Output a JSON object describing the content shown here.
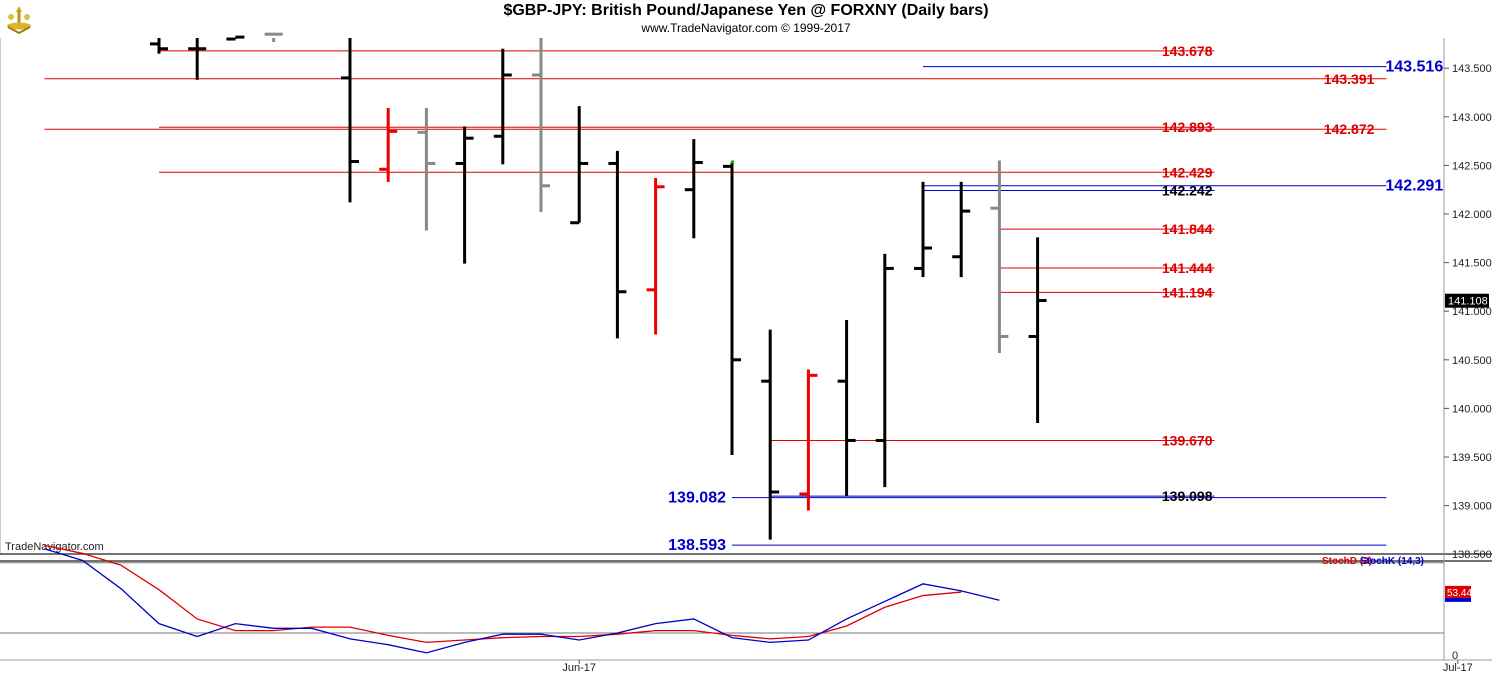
{
  "header": {
    "title": "$GBP-JPY:  British Pound/Japanese Yen @ FORXNY  (Daily bars)",
    "subtitle": "www.TradeNavigator.com © 1999-2017"
  },
  "watermark": "TradeNavigator.com",
  "colors": {
    "up": "#000000",
    "down": "#000000",
    "gray": "#888888",
    "red": "#ee0000",
    "level_red": "#dd0000",
    "level_blue": "#0000cc",
    "stochD": "#dd0000",
    "stochK": "#0000cc"
  },
  "chart_data": [
    {
      "type": "ohlc",
      "title": "$GBP-JPY:  British Pound/Japanese Yen @ FORXNY  (Daily bars)",
      "ylim": [
        138.35,
        143.9
      ],
      "y_ticks": [
        "138.500",
        "139.000",
        "139.500",
        "140.000",
        "140.500",
        "141.000",
        "141.500",
        "142.000",
        "142.500",
        "143.000",
        "143.500"
      ],
      "x_labels": [
        {
          "label": "Jun-17",
          "index": 11
        },
        {
          "label": "Jul-17",
          "index": 34
        }
      ],
      "n_slots": 36,
      "last_price": "141.108",
      "bars": [
        {
          "i": 0,
          "o": 143.75,
          "h": 143.92,
          "l": 143.65,
          "c": 143.7,
          "color": "black"
        },
        {
          "i": 1,
          "o": 143.7,
          "h": 143.92,
          "l": 143.38,
          "c": 143.7,
          "color": "black"
        },
        {
          "i": 2,
          "o": 143.8,
          "h": 143.92,
          "l": 143.8,
          "c": 143.82,
          "color": "black"
        },
        {
          "i": 3,
          "o": 143.85,
          "h": 143.92,
          "l": 143.77,
          "c": 143.85,
          "color": "gray"
        },
        {
          "i": 5,
          "o": 143.4,
          "h": 143.9,
          "l": 142.12,
          "c": 142.54,
          "color": "black"
        },
        {
          "i": 6,
          "o": 142.46,
          "h": 143.09,
          "l": 142.33,
          "c": 142.85,
          "color": "red"
        },
        {
          "i": 7,
          "o": 142.84,
          "h": 143.09,
          "l": 141.83,
          "c": 142.52,
          "color": "gray"
        },
        {
          "i": 8,
          "o": 142.52,
          "h": 142.9,
          "l": 141.49,
          "c": 142.78,
          "color": "black"
        },
        {
          "i": 9,
          "o": 142.8,
          "h": 143.7,
          "l": 142.51,
          "c": 143.43,
          "color": "black"
        },
        {
          "i": 10,
          "o": 143.43,
          "h": 143.92,
          "l": 142.02,
          "c": 142.29,
          "color": "gray"
        },
        {
          "i": 11,
          "o": 141.91,
          "h": 143.11,
          "l": 141.91,
          "c": 142.52,
          "color": "black"
        },
        {
          "i": 12,
          "o": 142.52,
          "h": 142.65,
          "l": 140.72,
          "c": 141.2,
          "color": "black"
        },
        {
          "i": 13,
          "o": 141.22,
          "h": 142.37,
          "l": 140.76,
          "c": 142.28,
          "color": "red"
        },
        {
          "i": 14,
          "o": 142.25,
          "h": 142.77,
          "l": 141.75,
          "c": 142.53,
          "color": "black"
        },
        {
          "i": 15,
          "o": 142.49,
          "h": 142.53,
          "l": 139.52,
          "c": 140.5,
          "color": "black"
        },
        {
          "i": 16,
          "o": 140.28,
          "h": 140.81,
          "l": 138.65,
          "c": 139.14,
          "color": "black"
        },
        {
          "i": 17,
          "o": 139.12,
          "h": 140.4,
          "l": 138.95,
          "c": 140.34,
          "color": "red"
        },
        {
          "i": 18,
          "o": 140.28,
          "h": 140.91,
          "l": 139.1,
          "c": 139.67,
          "color": "black"
        },
        {
          "i": 19,
          "o": 139.67,
          "h": 141.59,
          "l": 139.19,
          "c": 141.44,
          "color": "black"
        },
        {
          "i": 20,
          "o": 141.44,
          "h": 142.33,
          "l": 141.35,
          "c": 141.65,
          "color": "black"
        },
        {
          "i": 21,
          "o": 141.56,
          "h": 142.33,
          "l": 141.35,
          "c": 142.03,
          "color": "black"
        },
        {
          "i": 22,
          "o": 142.06,
          "h": 142.55,
          "l": 140.57,
          "c": 140.74,
          "color": "gray"
        },
        {
          "i": 23,
          "o": 140.74,
          "h": 141.76,
          "l": 139.85,
          "c": 141.11,
          "color": "black"
        }
      ],
      "levels_red": [
        {
          "value": 143.678,
          "label": "143.678",
          "from": 0,
          "to": 27.5
        },
        {
          "value": 143.391,
          "label": "143.391",
          "from": -3,
          "to": 32
        },
        {
          "value": 142.893,
          "label": "142.893",
          "from": 0,
          "to": 27.5
        },
        {
          "value": 142.872,
          "label": "142.872",
          "from": -3,
          "to": 32
        },
        {
          "value": 142.429,
          "label": "142.429",
          "from": 0,
          "to": 27.5
        },
        {
          "value": 141.844,
          "label": "141.844",
          "from": 22,
          "to": 27.5
        },
        {
          "value": 141.444,
          "label": "141.444",
          "from": 22,
          "to": 27.5
        },
        {
          "value": 141.194,
          "label": "141.194",
          "from": 22,
          "to": 27.5
        },
        {
          "value": 139.67,
          "label": "139.670",
          "from": 16,
          "to": 27.5
        }
      ],
      "levels_blue": [
        {
          "value": 143.516,
          "label": "143.516",
          "from": 20,
          "to": 32
        },
        {
          "value": 142.291,
          "label": "142.291",
          "from": 20,
          "to": 32
        },
        {
          "value": 139.082,
          "label": "139.082",
          "from": 15,
          "to": 32
        },
        {
          "value": 138.593,
          "label": "138.593",
          "from": 15,
          "to": 32
        }
      ],
      "levels_black": [
        {
          "value": 142.242,
          "label": "142.242",
          "from": 20,
          "to": 27.5
        },
        {
          "value": 139.098,
          "label": "139.098",
          "from": 16,
          "to": 27.5
        }
      ]
    },
    {
      "type": "line",
      "legend": [
        "StochD (3)",
        "StochK (14,3)"
      ],
      "ylim": [
        0,
        100
      ],
      "y_ticks": [
        "0"
      ],
      "last_value": "53.44",
      "series": [
        {
          "name": "StochD (3)",
          "color": "#dd0000",
          "values": [
            95,
            88,
            78,
            57,
            32,
            22,
            22,
            25,
            25,
            18,
            12,
            14,
            16,
            17,
            17,
            19,
            22,
            22,
            18,
            15,
            17,
            26,
            42,
            52,
            55
          ]
        },
        {
          "name": "StochK (14,3)",
          "color": "#0000cc",
          "values": [
            92,
            82,
            58,
            28,
            17,
            28,
            24,
            24,
            15,
            10,
            3,
            12,
            19,
            19,
            14,
            20,
            28,
            32,
            16,
            12,
            14,
            32,
            47,
            62,
            56,
            48
          ]
        }
      ]
    }
  ]
}
